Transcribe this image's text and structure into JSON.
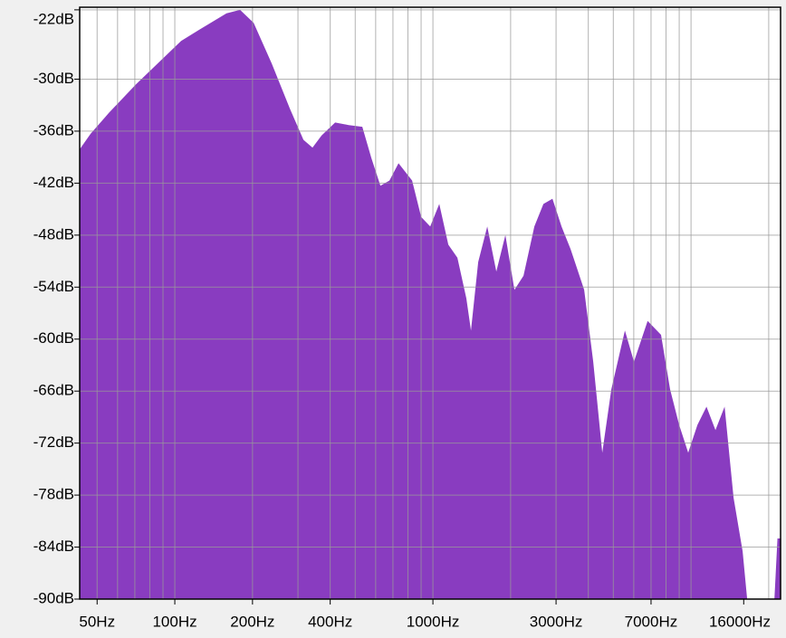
{
  "chart_data": {
    "type": "area",
    "xscale": "log",
    "grid": true,
    "color": "#893cc0",
    "x": [
      42.8,
      47.2,
      55.5,
      70.7,
      90.0,
      105.8,
      124.3,
      158.5,
      178.9,
      202.0,
      237.4,
      279.0,
      315.0,
      341.6,
      370.3,
      418.0,
      471.8,
      532.6,
      577.3,
      625.9,
      678.5,
      735.6,
      830.5,
      900.3,
      976,
      1058,
      1147,
      1244,
      1348,
      1404,
      1498,
      1624,
      1760,
      1909,
      2070,
      2244,
      2472,
      2680,
      2905,
      3149,
      3415,
      3855,
      4180,
      4530,
      4910,
      5546,
      6012,
      6792,
      7656,
      8300,
      8995,
      9750,
      10590,
      11480,
      12440,
      13490,
      14620,
      15850,
      16500,
      21040,
      21630,
      22230
    ],
    "values": [
      -38.1,
      -36.3,
      -33.9,
      -30.6,
      -27.6,
      -25.6,
      -24.3,
      -22.4,
      -22.0,
      -23.5,
      -28.2,
      -33.4,
      -37.0,
      -37.9,
      -36.5,
      -35.0,
      -35.3,
      -35.5,
      -39.1,
      -42.3,
      -41.7,
      -39.7,
      -41.7,
      -45.9,
      -47.0,
      -44.4,
      -49.1,
      -50.6,
      -55.3,
      -59.0,
      -51.1,
      -47.0,
      -52.2,
      -48.0,
      -54.3,
      -52.7,
      -47.0,
      -44.4,
      -43.8,
      -47.0,
      -49.6,
      -54.3,
      -62.6,
      -73.1,
      -65.8,
      -59.0,
      -62.6,
      -57.9,
      -59.5,
      -65.8,
      -69.9,
      -73.1,
      -69.9,
      -67.8,
      -70.5,
      -67.8,
      -78.3,
      -84.5,
      -90,
      -90,
      -83.0,
      -83.0
    ],
    "xlim": [
      42.8,
      22230
    ],
    "xticks": [
      {
        "value": 50,
        "label": "50Hz"
      },
      {
        "value": 100,
        "label": "100Hz"
      },
      {
        "value": 200,
        "label": "200Hz"
      },
      {
        "value": 400,
        "label": "400Hz"
      },
      {
        "value": 1000,
        "label": "1000Hz"
      },
      {
        "value": 3000,
        "label": "3000Hz"
      },
      {
        "value": 7000,
        "label": "7000Hz"
      },
      {
        "value": 16000,
        "label": "16000Hz"
      }
    ],
    "xgrid": [
      50,
      60,
      70,
      80,
      90,
      100,
      200,
      300,
      400,
      500,
      600,
      700,
      800,
      900,
      1000,
      2000,
      3000,
      4000,
      5000,
      6000,
      7000,
      8000,
      9000,
      10000,
      20000
    ],
    "ylim": [
      -90,
      -21.7
    ],
    "yticks": [
      {
        "value": -22,
        "label": "-22dB"
      },
      {
        "value": -30,
        "label": "-30dB"
      },
      {
        "value": -36,
        "label": "-36dB"
      },
      {
        "value": -42,
        "label": "-42dB"
      },
      {
        "value": -48,
        "label": "-48dB"
      },
      {
        "value": -54,
        "label": "-54dB"
      },
      {
        "value": -60,
        "label": "-60dB"
      },
      {
        "value": -66,
        "label": "-66dB"
      },
      {
        "value": -72,
        "label": "-72dB"
      },
      {
        "value": -78,
        "label": "-78dB"
      },
      {
        "value": -84,
        "label": "-84dB"
      },
      {
        "value": -90,
        "label": "-90dB"
      }
    ]
  }
}
